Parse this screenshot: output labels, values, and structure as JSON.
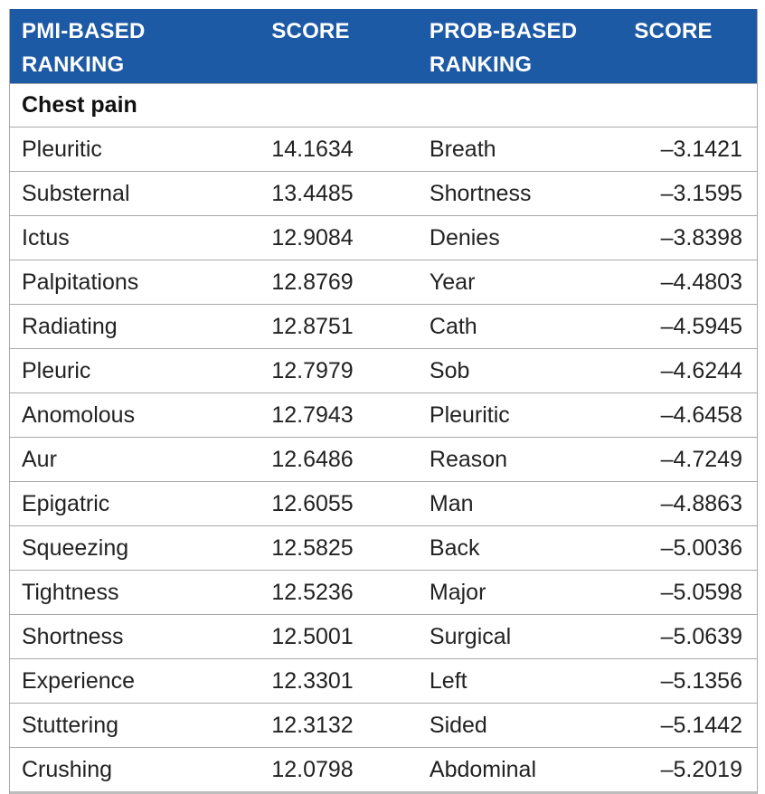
{
  "header": {
    "col1": [
      "PMI-BASED",
      "RANKING"
    ],
    "col2": [
      "SCORE"
    ],
    "col3": [
      "PROB-BASED",
      "RANKING"
    ],
    "col4": [
      "SCORE"
    ]
  },
  "section": "Chest pain",
  "rows": [
    {
      "pmi_term": "Pleuritic",
      "pmi_score": "14.1634",
      "prob_term": "Breath",
      "prob_score": "–3.1421"
    },
    {
      "pmi_term": "Substernal",
      "pmi_score": "13.4485",
      "prob_term": "Shortness",
      "prob_score": "–3.1595"
    },
    {
      "pmi_term": "Ictus",
      "pmi_score": "12.9084",
      "prob_term": "Denies",
      "prob_score": "–3.8398"
    },
    {
      "pmi_term": "Palpitations",
      "pmi_score": "12.8769",
      "prob_term": "Year",
      "prob_score": "–4.4803"
    },
    {
      "pmi_term": "Radiating",
      "pmi_score": "12.8751",
      "prob_term": "Cath",
      "prob_score": "–4.5945"
    },
    {
      "pmi_term": "Pleuric",
      "pmi_score": "12.7979",
      "prob_term": "Sob",
      "prob_score": "–4.6244"
    },
    {
      "pmi_term": "Anomolous",
      "pmi_score": "12.7943",
      "prob_term": "Pleuritic",
      "prob_score": "–4.6458"
    },
    {
      "pmi_term": "Aur",
      "pmi_score": "12.6486",
      "prob_term": "Reason",
      "prob_score": "–4.7249"
    },
    {
      "pmi_term": "Epigatric",
      "pmi_score": "12.6055",
      "prob_term": "Man",
      "prob_score": "–4.8863"
    },
    {
      "pmi_term": "Squeezing",
      "pmi_score": "12.5825",
      "prob_term": "Back",
      "prob_score": "–5.0036"
    },
    {
      "pmi_term": "Tightness",
      "pmi_score": "12.5236",
      "prob_term": "Major",
      "prob_score": "–5.0598"
    },
    {
      "pmi_term": "Shortness",
      "pmi_score": "12.5001",
      "prob_term": "Surgical",
      "prob_score": "–5.0639"
    },
    {
      "pmi_term": "Experience",
      "pmi_score": "12.3301",
      "prob_term": "Left",
      "prob_score": "–5.1356"
    },
    {
      "pmi_term": "Stuttering",
      "pmi_score": "12.3132",
      "prob_term": "Sided",
      "prob_score": "–5.1442"
    },
    {
      "pmi_term": "Crushing",
      "pmi_score": "12.0798",
      "prob_term": "Abdominal",
      "prob_score": "–5.2019"
    }
  ],
  "colors": {
    "header_bg": "#1d5aa6",
    "header_text": "#ffffff",
    "border": "#a9a9a9"
  }
}
